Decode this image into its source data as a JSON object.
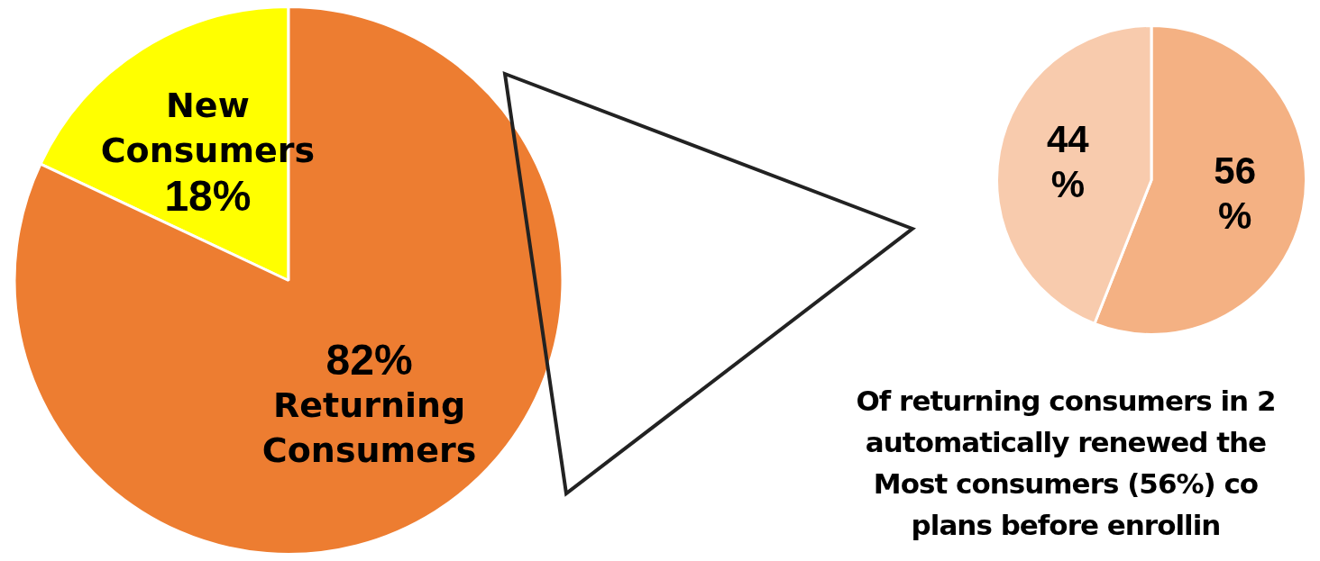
{
  "chart_data": [
    {
      "type": "pie",
      "categories": [
        "New Consumers",
        "Returning Consumers"
      ],
      "values": [
        18,
        82
      ],
      "colors": [
        "#ffff00",
        "#ed7d31"
      ],
      "value_labels": [
        "18%",
        "82%"
      ]
    },
    {
      "type": "pie",
      "categories": [
        null,
        null
      ],
      "values": [
        56,
        44
      ],
      "colors": [
        "#f4b183",
        "#f8cbad"
      ],
      "value_labels": [
        "56\n%",
        "44\n%"
      ],
      "annotations": [
        "Of returning consumers in 2\nautomatically renewed the\nMost consumers (56%) co\nplans before enrollin"
      ]
    }
  ]
}
